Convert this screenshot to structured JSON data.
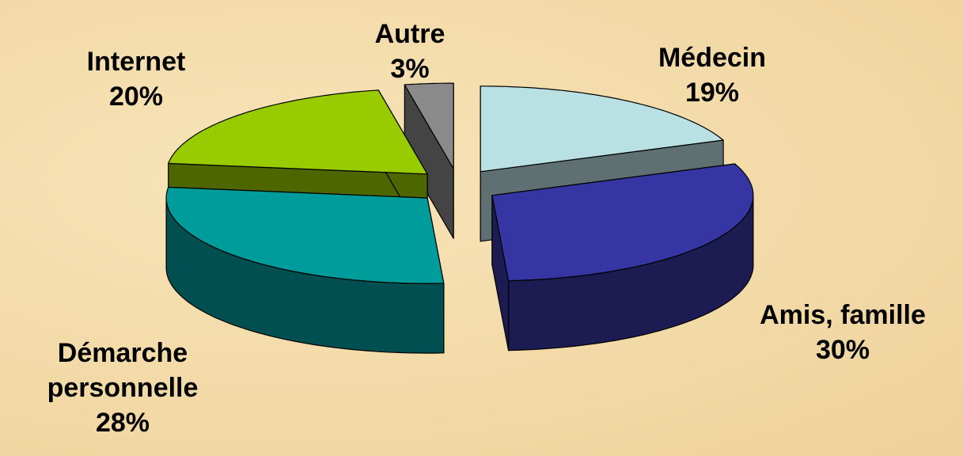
{
  "chart_data": {
    "type": "pie",
    "categories": [
      "Médecin",
      "Amis, famille",
      "Démarche personnelle",
      "Internet",
      "Autre"
    ],
    "values": [
      19,
      30,
      28,
      20,
      3
    ],
    "value_labels": [
      "19%",
      "30%",
      "28%",
      "20%",
      "3%"
    ],
    "colors": [
      "#b9e0e2",
      "#3535a3",
      "#009b9b",
      "#99cc00",
      "#8a8a8a"
    ],
    "side_colors": [
      "#5f7073",
      "#1c1c52",
      "#014f50",
      "#4d6600",
      "#444444"
    ]
  }
}
